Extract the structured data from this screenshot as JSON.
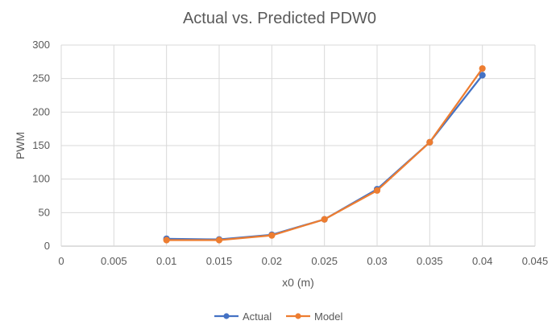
{
  "chart_data": {
    "type": "scatter",
    "title": "Actual vs. Predicted PDW0",
    "xlabel": "x0 (m)",
    "ylabel": "PWM",
    "xlim": [
      0,
      0.045
    ],
    "ylim": [
      0,
      300
    ],
    "x_ticks": [
      "0",
      "0.005",
      "0.01",
      "0.015",
      "0.02",
      "0.025",
      "0.03",
      "0.035",
      "0.04",
      "0.045"
    ],
    "y_ticks": [
      "0",
      "50",
      "100",
      "150",
      "200",
      "250",
      "300"
    ],
    "grid": true,
    "legend_position": "bottom",
    "series": [
      {
        "name": "Actual",
        "color": "#4472C4",
        "x": [
          0.01,
          0.015,
          0.02,
          0.025,
          0.03,
          0.035,
          0.04
        ],
        "y": [
          11,
          10,
          17,
          40,
          85,
          155,
          255
        ]
      },
      {
        "name": "Model",
        "color": "#ED7D31",
        "x": [
          0.01,
          0.015,
          0.02,
          0.025,
          0.03,
          0.035,
          0.04
        ],
        "y": [
          9,
          9,
          16,
          40,
          83,
          155,
          265
        ]
      }
    ]
  }
}
